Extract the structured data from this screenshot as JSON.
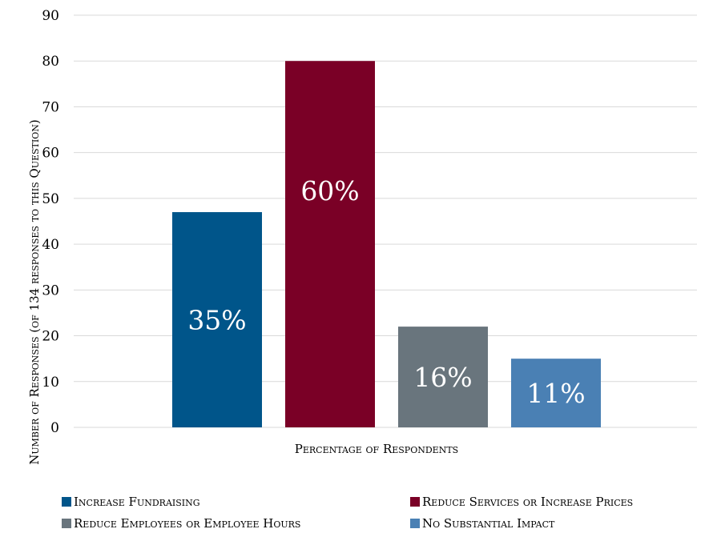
{
  "chart_data": {
    "type": "bar",
    "categories": [
      "Percentage of Respondents"
    ],
    "xlabel": "Percentage of Respondents",
    "ylabel": "Number of Responses (of 134 responses to this Question)",
    "ylim": [
      0,
      90
    ],
    "yticks": [
      0,
      10,
      20,
      30,
      40,
      50,
      60,
      70,
      80,
      90
    ],
    "grid": true,
    "legend_position": "bottom",
    "series": [
      {
        "name": "Increase Fundraising",
        "values": [
          47
        ],
        "label": "35%",
        "color": "#00558a"
      },
      {
        "name": "Reduce Services or Increase Prices",
        "values": [
          80
        ],
        "label": "60%",
        "color": "#7a0026"
      },
      {
        "name": "Reduce Employees or Employee Hours",
        "values": [
          22
        ],
        "label": "16%",
        "color": "#69757d"
      },
      {
        "name": "No Substantial Impact",
        "values": [
          15
        ],
        "label": "11%",
        "color": "#4a80b4"
      }
    ]
  }
}
